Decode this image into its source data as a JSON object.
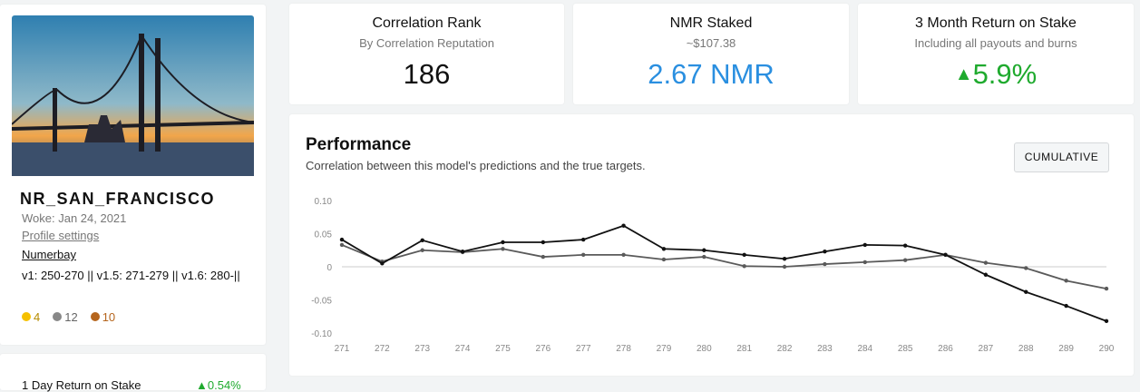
{
  "profile": {
    "name": "NR_SAN_FRANCISCO",
    "woke": "Woke: Jan 24, 2021",
    "settings_link": "Profile settings",
    "marketplace_link": "Numerbay",
    "versions": "v1: 250-270 || v1.5: 271-279 || v1.6: 280-||",
    "badges": {
      "gold": "4",
      "silver": "12",
      "bronze": "10"
    }
  },
  "stats": [
    {
      "title": "Correlation Rank",
      "subtitle": "By Correlation Reputation",
      "value": "186"
    },
    {
      "title": "NMR Staked",
      "subtitle": "~$107.38",
      "value": "2.67 NMR"
    },
    {
      "title": "3 Month Return on Stake",
      "subtitle": "Including all payouts and burns",
      "value": "5.9%"
    }
  ],
  "performance": {
    "title": "Performance",
    "subtitle": "Correlation between this model's predictions and the true targets.",
    "button": "CUMULATIVE"
  },
  "bottom_card": {
    "label": "1 Day Return on Stake",
    "value": "0.54%"
  },
  "chart_data": {
    "type": "line",
    "categories": [
      "271",
      "272",
      "273",
      "274",
      "275",
      "276",
      "277",
      "278",
      "279",
      "280",
      "281",
      "282",
      "283",
      "284",
      "285",
      "286",
      "287",
      "288",
      "289",
      "290"
    ],
    "series": [
      {
        "color": "#111111",
        "values": [
          0.041,
          0.005,
          0.04,
          0.023,
          0.037,
          0.037,
          0.041,
          0.062,
          0.027,
          0.025,
          0.018,
          0.012,
          0.023,
          0.033,
          0.032,
          0.018,
          -0.012,
          -0.038,
          -0.059,
          -0.082
        ]
      },
      {
        "color": "#5a5a5a",
        "values": [
          0.033,
          0.008,
          0.025,
          0.022,
          0.027,
          0.015,
          0.018,
          0.018,
          0.011,
          0.015,
          0.001,
          0,
          0.004,
          0.007,
          0.01,
          0.018,
          0.006,
          -0.002,
          -0.021,
          -0.033
        ]
      }
    ],
    "ylim": [
      -0.1,
      0.1
    ],
    "yticks": [
      {
        "value": 0.1,
        "label": "0.10"
      },
      0.05,
      0,
      -0.05,
      {
        "value": -0.1,
        "label": "-0.10"
      }
    ]
  }
}
